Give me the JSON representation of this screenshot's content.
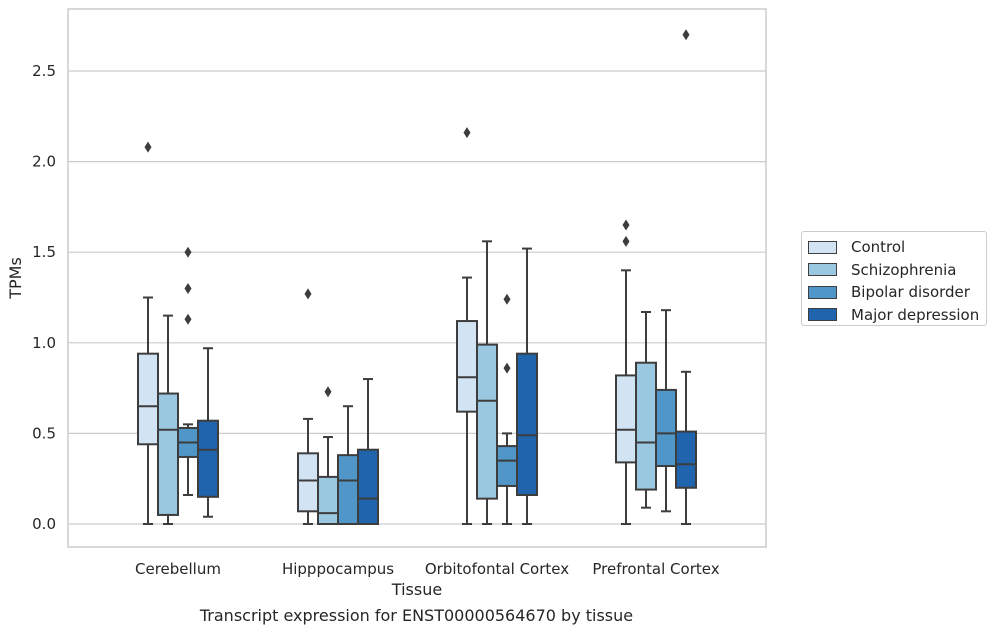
{
  "chart_data": {
    "type": "box",
    "title": "",
    "caption": "Transcript expression for ENST00000564670 by tissue",
    "xlabel": "Tissue",
    "ylabel": "TPMs",
    "ylim": [
      -0.13,
      2.85
    ],
    "yticks": [
      0.0,
      0.5,
      1.0,
      1.5,
      2.0,
      2.5
    ],
    "ytick_labels": [
      "0.0",
      "0.5",
      "1.0",
      "1.5",
      "2.0",
      "2.5"
    ],
    "grid": "horizontal",
    "legend_position": "right",
    "categories": [
      "Cerebellum",
      "Hipppocampus",
      "Orbitofontal Cortex",
      "Prefrontal Cortex"
    ],
    "series": [
      {
        "name": "Control",
        "color": "#d2e3f3",
        "boxes": [
          {
            "min": 0.0,
            "q1": 0.44,
            "median": 0.65,
            "q3": 0.94,
            "max": 1.25,
            "outliers": [
              2.08
            ]
          },
          {
            "min": 0.0,
            "q1": 0.07,
            "median": 0.24,
            "q3": 0.39,
            "max": 0.58,
            "outliers": [
              1.27
            ]
          },
          {
            "min": 0.0,
            "q1": 0.62,
            "median": 0.81,
            "q3": 1.12,
            "max": 1.36,
            "outliers": [
              2.16
            ]
          },
          {
            "min": 0.0,
            "q1": 0.34,
            "median": 0.52,
            "q3": 0.82,
            "max": 1.4,
            "outliers": [
              1.56,
              1.65
            ]
          }
        ]
      },
      {
        "name": "Schizophrenia",
        "color": "#9ac8e0",
        "boxes": [
          {
            "min": 0.0,
            "q1": 0.05,
            "median": 0.52,
            "q3": 0.72,
            "max": 1.15,
            "outliers": []
          },
          {
            "min": 0.0,
            "q1": 0.0,
            "median": 0.06,
            "q3": 0.26,
            "max": 0.48,
            "outliers": [
              0.73
            ]
          },
          {
            "min": 0.0,
            "q1": 0.14,
            "median": 0.68,
            "q3": 0.99,
            "max": 1.56,
            "outliers": []
          },
          {
            "min": 0.09,
            "q1": 0.19,
            "median": 0.45,
            "q3": 0.89,
            "max": 1.17,
            "outliers": []
          }
        ]
      },
      {
        "name": "Bipolar disorder",
        "color": "#5096c8",
        "boxes": [
          {
            "min": 0.16,
            "q1": 0.37,
            "median": 0.45,
            "q3": 0.53,
            "max": 0.55,
            "outliers": [
              1.13,
              1.3,
              1.5
            ]
          },
          {
            "min": 0.0,
            "q1": 0.0,
            "median": 0.24,
            "q3": 0.38,
            "max": 0.65,
            "outliers": []
          },
          {
            "min": 0.0,
            "q1": 0.21,
            "median": 0.35,
            "q3": 0.43,
            "max": 0.5,
            "outliers": [
              0.86,
              1.24
            ]
          },
          {
            "min": 0.07,
            "q1": 0.32,
            "median": 0.5,
            "q3": 0.74,
            "max": 1.18,
            "outliers": []
          }
        ]
      },
      {
        "name": "Major depression",
        "color": "#1f64ad",
        "boxes": [
          {
            "min": 0.04,
            "q1": 0.15,
            "median": 0.41,
            "q3": 0.57,
            "max": 0.97,
            "outliers": []
          },
          {
            "min": 0.0,
            "q1": 0.0,
            "median": 0.14,
            "q3": 0.41,
            "max": 0.8,
            "outliers": []
          },
          {
            "min": 0.0,
            "q1": 0.16,
            "median": 0.49,
            "q3": 0.94,
            "max": 1.52,
            "outliers": []
          },
          {
            "min": 0.0,
            "q1": 0.2,
            "median": 0.33,
            "q3": 0.51,
            "max": 0.84,
            "outliers": [
              2.7
            ]
          }
        ]
      }
    ]
  }
}
